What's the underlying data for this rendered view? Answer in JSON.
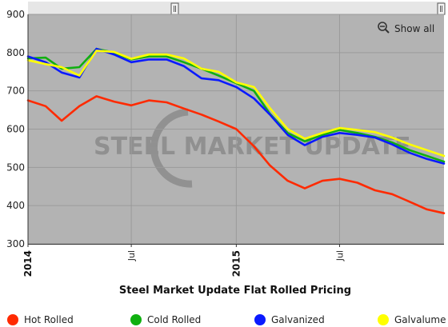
{
  "chart_data": {
    "type": "line",
    "title": "Steel Market Update Flat Rolled Pricing",
    "watermark": "STEEL MARKET UPDATE",
    "show_all_label": "Show all",
    "ylim": [
      300,
      900
    ],
    "yticks": [
      "300",
      "400",
      "500",
      "600",
      "700",
      "800",
      "900"
    ],
    "xlim": [
      "2014-01-01",
      "2015-12-31"
    ],
    "xticks": [
      {
        "label": "2014",
        "date": "2014-01-01",
        "bold": true
      },
      {
        "label": "Jul",
        "date": "2014-07-01",
        "bold": false
      },
      {
        "label": "2015",
        "date": "2015-01-01",
        "bold": true
      },
      {
        "label": "Jul",
        "date": "2015-07-01",
        "bold": false
      }
    ],
    "grid": true,
    "legend_position": "bottom",
    "plot_background": "#b3b3b3",
    "dates": [
      "2014-01-01",
      "2014-02-01",
      "2014-03-01",
      "2014-04-01",
      "2014-05-01",
      "2014-06-01",
      "2014-07-01",
      "2014-08-01",
      "2014-09-01",
      "2014-10-01",
      "2014-11-01",
      "2014-12-01",
      "2015-01-01",
      "2015-02-01",
      "2015-03-01",
      "2015-04-01",
      "2015-05-01",
      "2015-06-01",
      "2015-07-01",
      "2015-08-01",
      "2015-09-01",
      "2015-10-01",
      "2015-11-01",
      "2015-12-01",
      "2015-12-31"
    ],
    "series": [
      {
        "name": "Hot Rolled",
        "color": "#ff2a00",
        "values": [
          675,
          660,
          622,
          660,
          686,
          672,
          662,
          675,
          670,
          654,
          638,
          620,
          600,
          555,
          505,
          465,
          445,
          465,
          470,
          460,
          440,
          430,
          410,
          390,
          380
        ]
      },
      {
        "name": "Cold Rolled",
        "color": "#10b010",
        "values": [
          785,
          787,
          758,
          762,
          810,
          800,
          782,
          790,
          790,
          775,
          758,
          740,
          720,
          700,
          640,
          590,
          568,
          585,
          598,
          590,
          580,
          565,
          545,
          530,
          515
        ]
      },
      {
        "name": "Galvanized",
        "color": "#0a1aff",
        "values": [
          790,
          775,
          748,
          735,
          810,
          795,
          775,
          782,
          782,
          765,
          733,
          728,
          710,
          680,
          638,
          585,
          558,
          580,
          590,
          585,
          578,
          560,
          538,
          522,
          510
        ]
      },
      {
        "name": "Galvalume",
        "color": "#ffff00",
        "values": [
          780,
          770,
          762,
          740,
          805,
          802,
          784,
          795,
          795,
          785,
          758,
          750,
          722,
          710,
          655,
          600,
          575,
          590,
          603,
          598,
          592,
          578,
          560,
          545,
          530
        ]
      }
    ]
  }
}
